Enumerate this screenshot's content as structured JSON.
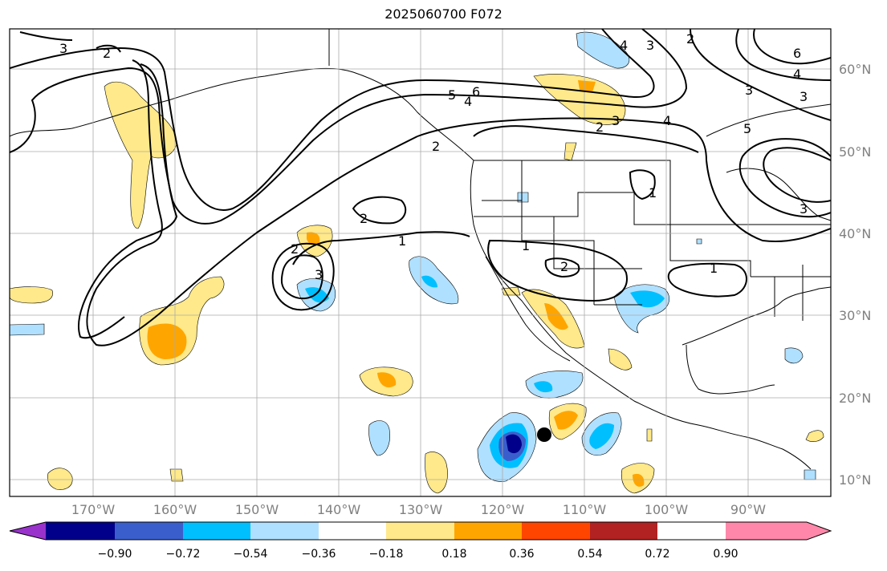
{
  "title": "2025060700 F072",
  "lat_labels": [
    "60°N",
    "50°N",
    "40°N",
    "30°N",
    "20°N",
    "10°N"
  ],
  "lon_labels": [
    "170°W",
    "160°W",
    "150°W",
    "140°W",
    "130°W",
    "120°W",
    "110°W",
    "100°W",
    "90°W"
  ],
  "colorbar": {
    "ticks": [
      "−0.90",
      "−0.72",
      "−0.54",
      "−0.36",
      "−0.18",
      "0.18",
      "0.36",
      "0.54",
      "0.72",
      "0.90"
    ],
    "colors": [
      "#9932cc",
      "#00008b",
      "#3a5fcd",
      "#00bfff",
      "#b0e0ff",
      "#ffffff",
      "#ffe98a",
      "#ffa500",
      "#ff4500",
      "#b22222",
      "#ff88aa"
    ]
  },
  "contour_labels": [
    "3",
    "2",
    "6",
    "4",
    "5",
    "4",
    "3",
    "2",
    "5",
    "6",
    "4",
    "3",
    "2",
    "3",
    "1",
    "2",
    "1",
    "1",
    "2",
    "1",
    "2",
    "3",
    "3",
    "2",
    "4",
    "3"
  ],
  "marker": "storm-position-dot"
}
